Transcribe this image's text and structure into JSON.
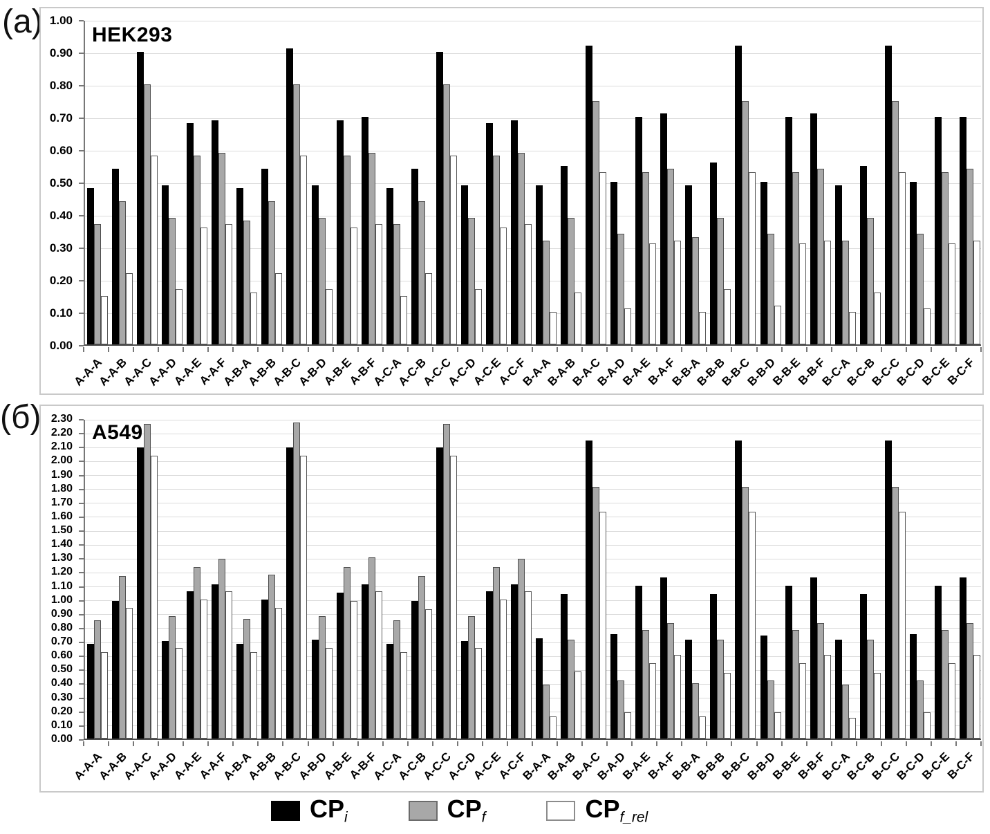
{
  "chart_data": [
    {
      "type": "bar",
      "panel_label": "(a)",
      "title": "HEK293",
      "xlabel": "",
      "ylabel": "",
      "ylim": [
        0,
        1.0
      ],
      "ytick_step": 0.1,
      "y_decimals": 2,
      "grid": true,
      "categories": [
        "A-A-A",
        "A-A-B",
        "A-A-C",
        "A-A-D",
        "A-A-E",
        "A-A-F",
        "A-B-A",
        "A-B-B",
        "A-B-C",
        "A-B-D",
        "A-B-E",
        "A-B-F",
        "A-C-A",
        "A-C-B",
        "A-C-C",
        "A-C-D",
        "A-C-E",
        "A-C-F",
        "B-A-A",
        "B-A-B",
        "B-A-C",
        "B-A-D",
        "B-A-E",
        "B-A-F",
        "B-B-A",
        "B-B-B",
        "B-B-C",
        "B-B-D",
        "B-B-E",
        "B-B-F",
        "B-C-A",
        "B-C-B",
        "B-C-C",
        "B-C-D",
        "B-C-E",
        "B-C-F"
      ],
      "series": [
        {
          "name": "CP_i",
          "color": "#000000",
          "border_color": "#000000",
          "values": [
            0.48,
            0.54,
            0.9,
            0.49,
            0.68,
            0.69,
            0.48,
            0.54,
            0.91,
            0.49,
            0.69,
            0.7,
            0.48,
            0.54,
            0.9,
            0.49,
            0.68,
            0.69,
            0.49,
            0.55,
            0.92,
            0.5,
            0.7,
            0.71,
            0.49,
            0.56,
            0.92,
            0.5,
            0.7,
            0.71,
            0.49,
            0.55,
            0.92,
            0.5,
            0.7,
            0.7
          ]
        },
        {
          "name": "CP_f",
          "color": "#a8a8a8",
          "border_color": "#4d4d4d",
          "values": [
            0.37,
            0.44,
            0.8,
            0.39,
            0.58,
            0.59,
            0.38,
            0.44,
            0.8,
            0.39,
            0.58,
            0.59,
            0.37,
            0.44,
            0.8,
            0.39,
            0.58,
            0.59,
            0.32,
            0.39,
            0.75,
            0.34,
            0.53,
            0.54,
            0.33,
            0.39,
            0.75,
            0.34,
            0.53,
            0.54,
            0.32,
            0.39,
            0.75,
            0.34,
            0.53,
            0.54
          ]
        },
        {
          "name": "CP_f_rel",
          "color": "#ffffff",
          "border_color": "#595959",
          "values": [
            0.15,
            0.22,
            0.58,
            0.17,
            0.36,
            0.37,
            0.16,
            0.22,
            0.58,
            0.17,
            0.36,
            0.37,
            0.15,
            0.22,
            0.58,
            0.17,
            0.36,
            0.37,
            0.1,
            0.16,
            0.53,
            0.11,
            0.31,
            0.32,
            0.1,
            0.17,
            0.53,
            0.12,
            0.31,
            0.32,
            0.1,
            0.16,
            0.53,
            0.11,
            0.31,
            0.32
          ]
        }
      ]
    },
    {
      "type": "bar",
      "panel_label": "(б)",
      "title": "A549",
      "xlabel": "",
      "ylabel": "",
      "ylim": [
        0,
        2.3
      ],
      "ytick_step": 0.1,
      "y_decimals": 2,
      "grid": true,
      "categories": [
        "A-A-A",
        "A-A-B",
        "A-A-C",
        "A-A-D",
        "A-A-E",
        "A-A-F",
        "A-B-A",
        "A-B-B",
        "A-B-C",
        "A-B-D",
        "A-B-E",
        "A-B-F",
        "A-C-A",
        "A-C-B",
        "A-C-C",
        "A-C-D",
        "A-C-E",
        "A-C-F",
        "B-A-A",
        "B-A-B",
        "B-A-C",
        "B-A-D",
        "B-A-E",
        "B-A-F",
        "B-B-A",
        "B-B-B",
        "B-B-C",
        "B-B-D",
        "B-B-E",
        "B-B-F",
        "B-C-A",
        "B-C-B",
        "B-C-C",
        "B-C-D",
        "B-C-E",
        "B-C-F"
      ],
      "series": [
        {
          "name": "CP_i",
          "color": "#000000",
          "border_color": "#000000",
          "values": [
            0.68,
            0.99,
            2.09,
            0.7,
            1.06,
            1.11,
            0.68,
            1.0,
            2.09,
            0.71,
            1.05,
            1.11,
            0.68,
            0.99,
            2.09,
            0.7,
            1.06,
            1.11,
            0.72,
            1.04,
            2.14,
            0.75,
            1.1,
            1.16,
            0.71,
            1.04,
            2.14,
            0.74,
            1.1,
            1.16,
            0.71,
            1.04,
            2.14,
            0.75,
            1.1,
            1.16
          ]
        },
        {
          "name": "CP_f",
          "color": "#a8a8a8",
          "border_color": "#4d4d4d",
          "values": [
            0.85,
            1.17,
            2.26,
            0.88,
            1.23,
            1.29,
            0.86,
            1.18,
            2.27,
            0.88,
            1.23,
            1.3,
            0.85,
            1.17,
            2.26,
            0.88,
            1.23,
            1.29,
            0.39,
            0.71,
            1.81,
            0.42,
            0.78,
            0.83,
            0.4,
            0.71,
            1.81,
            0.42,
            0.78,
            0.83,
            0.39,
            0.71,
            1.81,
            0.42,
            0.78,
            0.83
          ]
        },
        {
          "name": "CP_f_rel",
          "color": "#ffffff",
          "border_color": "#595959",
          "values": [
            0.62,
            0.94,
            2.03,
            0.65,
            1.0,
            1.06,
            0.62,
            0.94,
            2.03,
            0.65,
            0.99,
            1.06,
            0.62,
            0.93,
            2.03,
            0.65,
            1.0,
            1.06,
            0.16,
            0.48,
            1.63,
            0.19,
            0.54,
            0.6,
            0.16,
            0.47,
            1.63,
            0.19,
            0.54,
            0.6,
            0.15,
            0.47,
            1.63,
            0.19,
            0.54,
            0.6
          ]
        }
      ]
    }
  ],
  "legend": {
    "items": [
      {
        "main": "CP",
        "sub": "i",
        "swatch_color": "#000000",
        "swatch_border": "#000000"
      },
      {
        "main": "CP",
        "sub": "f",
        "swatch_color": "#a8a8a8",
        "swatch_border": "#6b6b6b"
      },
      {
        "main": "CP",
        "sub": "f_rel",
        "swatch_color": "#ffffff",
        "swatch_border": "#8c8c8c"
      }
    ]
  },
  "colors": {
    "gridline": "#dbdbdb",
    "axis": "#4a4a4a",
    "panel_border": "#c9c9c9"
  }
}
